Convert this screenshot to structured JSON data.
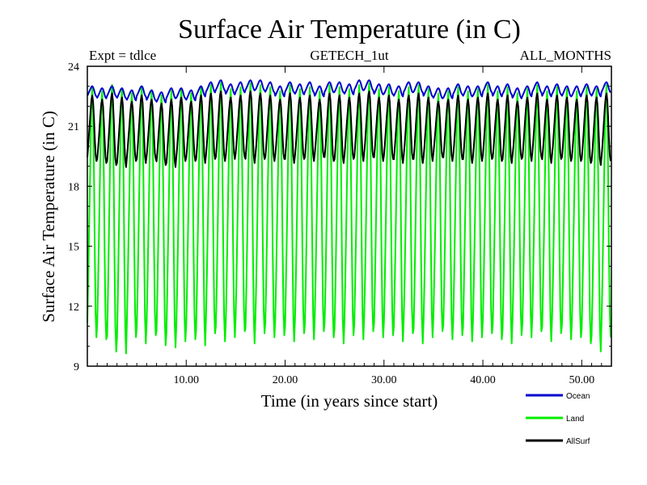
{
  "chart_data": {
    "type": "line",
    "title": "Surface Air Temperature (in C)",
    "subtitle_left": "Expt = tdlce",
    "subtitle_center": "GETECH_1ut",
    "subtitle_right": "ALL_MONTHS",
    "xlabel": "Time (in years since start)",
    "ylabel": "Surface Air Temperature (in C)",
    "xlim": [
      0,
      53
    ],
    "ylim": [
      9,
      24
    ],
    "xticks": [
      10,
      20,
      30,
      40,
      50
    ],
    "xtick_labels": [
      "10.00",
      "20.00",
      "30.00",
      "40.00",
      "50.00"
    ],
    "yticks": [
      9,
      12,
      15,
      18,
      21,
      24
    ],
    "ytick_labels": [
      "9",
      "12",
      "15",
      "18",
      "21",
      "24"
    ],
    "grid": false,
    "legend_position": "bottom-right",
    "series": [
      {
        "name": "Land",
        "color": "#00ee00",
        "annual_cycle": true,
        "yearly_max": [
          22.8,
          22.6,
          22.9,
          22.7,
          22.5,
          22.8,
          22.6,
          22.4,
          22.6,
          22.7,
          22.5,
          22.8,
          22.9,
          23.0,
          22.7,
          22.8,
          23.0,
          22.9,
          22.8,
          22.6,
          22.9,
          22.7,
          22.8,
          22.6,
          22.9,
          22.8,
          22.7,
          22.9,
          23.0,
          22.7,
          22.8,
          22.6,
          22.8,
          22.9,
          22.7,
          22.5,
          22.6,
          22.8,
          22.6,
          22.7,
          22.9,
          22.6,
          22.8,
          22.5,
          22.7,
          22.9,
          22.6,
          22.8,
          22.7,
          22.6,
          22.8,
          22.7,
          22.9
        ],
        "yearly_min": [
          10.6,
          10.5,
          9.9,
          9.8,
          10.6,
          10.3,
          10.7,
          10.2,
          10.1,
          10.4,
          10.5,
          10.2,
          10.8,
          10.4,
          10.6,
          10.9,
          10.3,
          10.8,
          10.6,
          10.7,
          10.4,
          10.8,
          10.5,
          10.9,
          10.6,
          10.3,
          10.7,
          10.5,
          10.9,
          10.6,
          10.7,
          10.4,
          10.8,
          10.3,
          10.6,
          10.9,
          10.5,
          10.7,
          10.4,
          10.6,
          10.8,
          10.5,
          10.3,
          10.7,
          10.6,
          10.9,
          10.4,
          10.8,
          10.5,
          10.6,
          10.3,
          9.9,
          10.6
        ]
      },
      {
        "name": "AllSurf",
        "color": "#000000",
        "annual_cycle": true,
        "yearly_max": [
          22.5,
          22.3,
          22.6,
          22.4,
          22.2,
          22.5,
          22.3,
          22.1,
          22.3,
          22.4,
          22.2,
          22.5,
          22.6,
          22.7,
          22.4,
          22.5,
          22.7,
          22.6,
          22.5,
          22.3,
          22.6,
          22.4,
          22.5,
          22.3,
          22.6,
          22.5,
          22.4,
          22.6,
          22.7,
          22.4,
          22.5,
          22.3,
          22.5,
          22.6,
          22.4,
          22.2,
          22.3,
          22.5,
          22.3,
          22.4,
          22.6,
          22.3,
          22.5,
          22.2,
          22.4,
          22.6,
          22.3,
          22.5,
          22.4,
          22.3,
          22.5,
          22.4,
          22.6
        ],
        "yearly_min": [
          19.3,
          19.2,
          19.1,
          19.0,
          19.3,
          19.2,
          19.4,
          19.1,
          19.0,
          19.3,
          19.3,
          19.2,
          19.4,
          19.3,
          19.4,
          19.5,
          19.2,
          19.4,
          19.3,
          19.4,
          19.2,
          19.4,
          19.3,
          19.5,
          19.3,
          19.2,
          19.4,
          19.3,
          19.5,
          19.3,
          19.4,
          19.2,
          19.4,
          19.2,
          19.3,
          19.5,
          19.3,
          19.4,
          19.2,
          19.3,
          19.4,
          19.3,
          19.2,
          19.4,
          19.3,
          19.5,
          19.2,
          19.4,
          19.3,
          19.3,
          19.2,
          19.1,
          19.3
        ]
      },
      {
        "name": "Ocean",
        "color": "#0000cc",
        "annual_cycle": true,
        "yearly_max": [
          23.0,
          22.9,
          23.0,
          22.9,
          22.8,
          23.0,
          22.8,
          22.7,
          22.9,
          22.9,
          22.8,
          23.0,
          23.2,
          23.3,
          23.1,
          23.2,
          23.3,
          23.3,
          23.2,
          23.0,
          23.2,
          23.1,
          23.2,
          23.0,
          23.2,
          23.2,
          23.1,
          23.3,
          23.3,
          23.1,
          23.1,
          23.0,
          23.2,
          23.2,
          23.0,
          22.9,
          22.9,
          23.1,
          23.0,
          23.0,
          23.2,
          23.0,
          23.1,
          22.9,
          23.0,
          23.2,
          23.0,
          23.1,
          23.0,
          23.0,
          23.1,
          23.0,
          23.2
        ],
        "yearly_min": [
          22.5,
          22.4,
          22.5,
          22.4,
          22.3,
          22.5,
          22.3,
          22.2,
          22.4,
          22.4,
          22.3,
          22.5,
          22.7,
          22.8,
          22.6,
          22.7,
          22.8,
          22.8,
          22.7,
          22.5,
          22.7,
          22.6,
          22.7,
          22.5,
          22.7,
          22.7,
          22.6,
          22.8,
          22.8,
          22.6,
          22.6,
          22.5,
          22.7,
          22.7,
          22.5,
          22.4,
          22.4,
          22.6,
          22.5,
          22.5,
          22.7,
          22.5,
          22.6,
          22.4,
          22.5,
          22.7,
          22.5,
          22.6,
          22.5,
          22.5,
          22.6,
          22.5,
          22.7
        ]
      }
    ],
    "legend": [
      {
        "name": "Ocean",
        "color": "#0000cc"
      },
      {
        "name": "Land",
        "color": "#00ee00"
      },
      {
        "name": "AllSurf",
        "color": "#000000"
      }
    ]
  }
}
